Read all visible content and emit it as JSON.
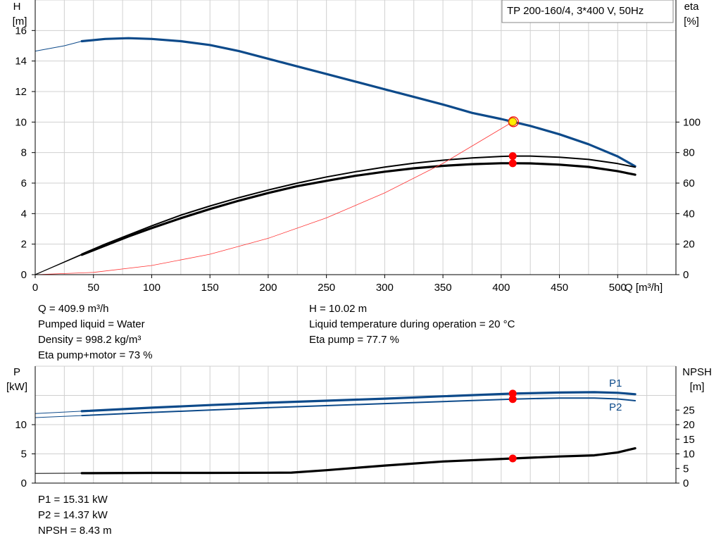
{
  "pump_label": "TP 200-160/4, 3*400 V, 50Hz",
  "top_axes": {
    "left_title": "H",
    "left_unit": "[m]",
    "right_title": "eta",
    "right_unit": "[%]",
    "x_label": "Q [m³/h]"
  },
  "bottom_axes": {
    "left_title": "P",
    "left_unit": "[kW]",
    "right_title": "NPSH",
    "right_unit": "[m]"
  },
  "info_top_left": [
    "Q = 409.9 m³/h",
    "Pumped liquid = Water",
    "Density = 998.2 kg/m³",
    "Eta pump+motor = 73 %"
  ],
  "info_top_right": [
    "H = 10.02 m",
    "Liquid temperature during operation = 20 °C",
    "Eta pump = 77.7 %"
  ],
  "info_bottom": [
    "P1 = 15.31 kW",
    "P2 = 14.37 kW",
    "NPSH = 8.43 m"
  ],
  "colors": {
    "head_curve": "#0d4a8a",
    "efficiency_curve": "#000000",
    "system_curve": "#ff3333",
    "duty_point": "#ff0000",
    "duty_point_head_fill": "#ffee00",
    "grid": "#d0d0d0"
  },
  "chart_data": [
    {
      "type": "line",
      "name": "performance",
      "x_unit": "m³/h",
      "xlim": [
        0,
        550
      ],
      "x_ticks": [
        0,
        50,
        100,
        150,
        200,
        250,
        300,
        350,
        400,
        450,
        500
      ],
      "ylim_left": [
        0,
        18
      ],
      "y_ticks_left": [
        0,
        2,
        4,
        6,
        8,
        10,
        12,
        14,
        16
      ],
      "ylim_right": [
        0,
        180
      ],
      "y_ticks_right": [
        0,
        20,
        40,
        60,
        80,
        100
      ],
      "grid": true,
      "series": [
        {
          "axis": "left",
          "style": "thick-blue",
          "x": [
            0,
            25,
            40,
            60,
            80,
            100,
            125,
            150,
            175,
            200,
            225,
            250,
            275,
            300,
            325,
            350,
            375,
            400,
            410,
            425,
            450,
            475,
            500,
            515
          ],
          "y": [
            14.65,
            15.0,
            15.3,
            15.45,
            15.5,
            15.45,
            15.3,
            15.05,
            14.65,
            14.15,
            13.65,
            13.15,
            12.65,
            12.15,
            11.65,
            11.15,
            10.6,
            10.2,
            10.02,
            9.75,
            9.2,
            8.55,
            7.75,
            7.1
          ]
        },
        {
          "axis": "right",
          "style": "black",
          "x": [
            0,
            40,
            60,
            80,
            100,
            125,
            150,
            175,
            200,
            225,
            250,
            275,
            300,
            325,
            350,
            375,
            400,
            410,
            425,
            450,
            475,
            500,
            515
          ],
          "y": [
            0,
            13.5,
            20,
            26,
            32,
            39,
            45,
            50.5,
            55.5,
            60,
            64,
            67.5,
            70.5,
            73,
            75,
            76.5,
            77.5,
            77.7,
            77.7,
            77,
            75.5,
            72.8,
            70.5
          ]
        },
        {
          "axis": "right",
          "style": "thick-black",
          "x": [
            0,
            40,
            60,
            80,
            100,
            125,
            150,
            175,
            200,
            225,
            250,
            275,
            300,
            325,
            350,
            375,
            400,
            410,
            425,
            450,
            475,
            500,
            515
          ],
          "y": [
            0,
            13,
            19,
            25,
            30.5,
            37,
            43,
            48.5,
            53.5,
            58,
            61.5,
            64.8,
            67.5,
            69.7,
            71.3,
            72.4,
            73,
            73,
            72.9,
            72.1,
            70.6,
            67.8,
            65.5
          ]
        },
        {
          "axis": "left",
          "style": "thin-red",
          "x": [
            0,
            50,
            100,
            150,
            200,
            250,
            300,
            350,
            410
          ],
          "y": [
            0,
            0.15,
            0.6,
            1.34,
            2.38,
            3.72,
            5.36,
            7.29,
            10.02
          ]
        }
      ],
      "duty_point": {
        "q": 409.9,
        "head": 10.02,
        "eta_pump": 77.7,
        "eta_total": 73
      }
    },
    {
      "type": "line",
      "name": "power-npsh",
      "xlim": [
        0,
        550
      ],
      "ylim_left": [
        0,
        20
      ],
      "y_ticks_left": [
        0,
        5,
        10
      ],
      "ylim_right": [
        0,
        40
      ],
      "y_ticks_right": [
        0,
        5,
        10,
        15,
        20,
        25
      ],
      "grid": true,
      "series": [
        {
          "name": "P1",
          "axis": "left",
          "style": "thick-blue",
          "x": [
            0,
            40,
            100,
            150,
            200,
            250,
            300,
            350,
            410,
            450,
            480,
            500,
            515
          ],
          "y": [
            11.9,
            12.3,
            12.9,
            13.35,
            13.75,
            14.1,
            14.45,
            14.85,
            15.31,
            15.5,
            15.55,
            15.45,
            15.2
          ]
        },
        {
          "name": "P2",
          "axis": "left",
          "style": "blue",
          "x": [
            0,
            40,
            100,
            150,
            200,
            250,
            300,
            350,
            410,
            450,
            480,
            500,
            515
          ],
          "y": [
            11.2,
            11.55,
            12.1,
            12.5,
            12.9,
            13.25,
            13.6,
            13.95,
            14.37,
            14.55,
            14.55,
            14.4,
            14.1
          ]
        },
        {
          "name": "NPSH",
          "axis": "right",
          "style": "thick-black",
          "x": [
            0,
            40,
            100,
            150,
            200,
            220,
            250,
            300,
            350,
            410,
            450,
            480,
            500,
            515
          ],
          "y": [
            3.3,
            3.4,
            3.5,
            3.5,
            3.55,
            3.6,
            4.4,
            6.0,
            7.4,
            8.43,
            9.1,
            9.5,
            10.5,
            11.9
          ]
        }
      ],
      "duty_point": {
        "q": 409.9,
        "p1": 15.31,
        "p2": 14.37,
        "npsh": 8.43
      }
    }
  ]
}
